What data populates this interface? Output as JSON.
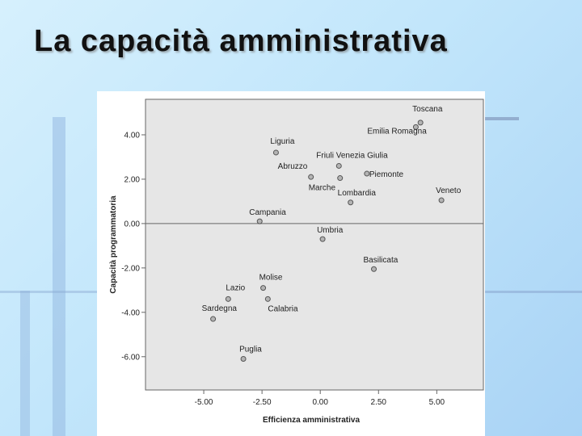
{
  "slide": {
    "title": "La capacità amministrativa"
  },
  "colors": {
    "background": "#c2e6fb",
    "plot_area": "#e6e6e6",
    "point_fill": "#b4b4b4",
    "point_stroke": "#555555",
    "reference_line": "#666666"
  },
  "chart_data": {
    "type": "scatter",
    "xlabel": "Efficienza amministrativa",
    "ylabel": "Capacità programmatoria",
    "xlim": [
      -7.5,
      7.0
    ],
    "ylim": [
      -7.5,
      5.6
    ],
    "x_ticks": [
      -5.0,
      -2.5,
      0.0,
      2.5,
      5.0
    ],
    "x_tick_labels": [
      "-5.00",
      "-2.50",
      "0.00",
      "2.50",
      "5.00"
    ],
    "y_ticks": [
      4.0,
      2.0,
      0.0,
      -2.0,
      -4.0,
      -6.0
    ],
    "y_tick_labels": [
      "4.00",
      "2.00",
      "0.00",
      "-2.00",
      "-4.00",
      "-6.00"
    ],
    "reference_line_y": 0.0,
    "grid": false,
    "points": [
      {
        "label": "Toscana",
        "x": 4.3,
        "y": 4.55
      },
      {
        "label": "Emilia Romagna",
        "x": 4.1,
        "y": 4.35
      },
      {
        "label": "Liguria",
        "x": -1.9,
        "y": 3.2
      },
      {
        "label": "Friuli Venezia Giulia",
        "x": 0.8,
        "y": 2.6
      },
      {
        "label": "Abruzzo",
        "x": -0.4,
        "y": 2.1
      },
      {
        "label": "Piemonte",
        "x": 2.0,
        "y": 2.25
      },
      {
        "label": "Marche",
        "x": 0.85,
        "y": 2.05
      },
      {
        "label": "Lombardia",
        "x": 1.3,
        "y": 0.95
      },
      {
        "label": "Veneto",
        "x": 5.2,
        "y": 1.05
      },
      {
        "label": "Campania",
        "x": -2.6,
        "y": 0.1
      },
      {
        "label": "Umbria",
        "x": 0.1,
        "y": -0.7
      },
      {
        "label": "Basilicata",
        "x": 2.3,
        "y": -2.05
      },
      {
        "label": "Molise",
        "x": -2.45,
        "y": -2.9
      },
      {
        "label": "Lazio",
        "x": -3.95,
        "y": -3.4
      },
      {
        "label": "Calabria",
        "x": -2.25,
        "y": -3.4
      },
      {
        "label": "Sardegna",
        "x": -4.6,
        "y": -4.3
      },
      {
        "label": "Puglia",
        "x": -3.3,
        "y": -6.1
      }
    ]
  }
}
